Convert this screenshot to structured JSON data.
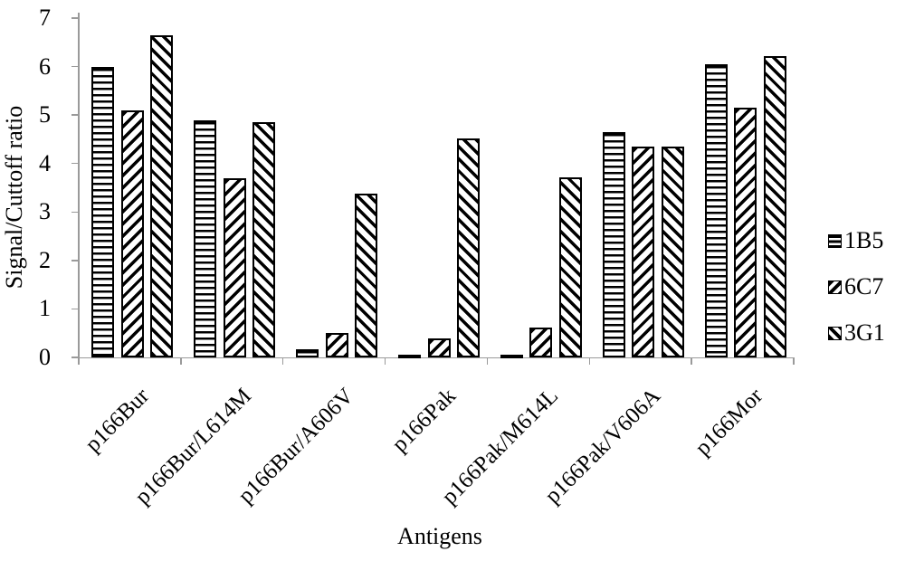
{
  "figure": {
    "background": "#ffffff"
  },
  "chart_data": {
    "type": "bar",
    "title": "",
    "xlabel": "Antigens",
    "ylabel": "Signal/Cuttoff ratio",
    "ylim": [
      0,
      7
    ],
    "yticks": [
      0,
      1,
      2,
      3,
      4,
      5,
      6,
      7
    ],
    "grid": false,
    "legend_position": "right-middle",
    "x_tick_label_rotation_deg": 45,
    "colors": {
      "bar_fill": "#ffffff",
      "bar_stroke": "#000000",
      "axis_line": "#9a9a9a",
      "text": "#000000"
    },
    "categories": [
      "p166Bur",
      "p166Bur/L614M",
      "p166Bur/A606V",
      "p166Pak",
      "p166Pak/M614L",
      "p166Pak/V606A",
      "p166Mor"
    ],
    "series": [
      {
        "name": "1B5",
        "pattern": "horizontal-stripes",
        "values": [
          6.0,
          4.9,
          0.17,
          0.03,
          0.03,
          4.65,
          6.05
        ]
      },
      {
        "name": "6C7",
        "pattern": "forward-diagonal-stripes",
        "values": [
          5.1,
          3.7,
          0.5,
          0.4,
          0.62,
          4.35,
          5.15
        ]
      },
      {
        "name": "3G1",
        "pattern": "back-diagonal-stripes",
        "values": [
          6.65,
          4.85,
          3.37,
          4.52,
          3.72,
          4.35,
          6.22
        ]
      }
    ]
  }
}
